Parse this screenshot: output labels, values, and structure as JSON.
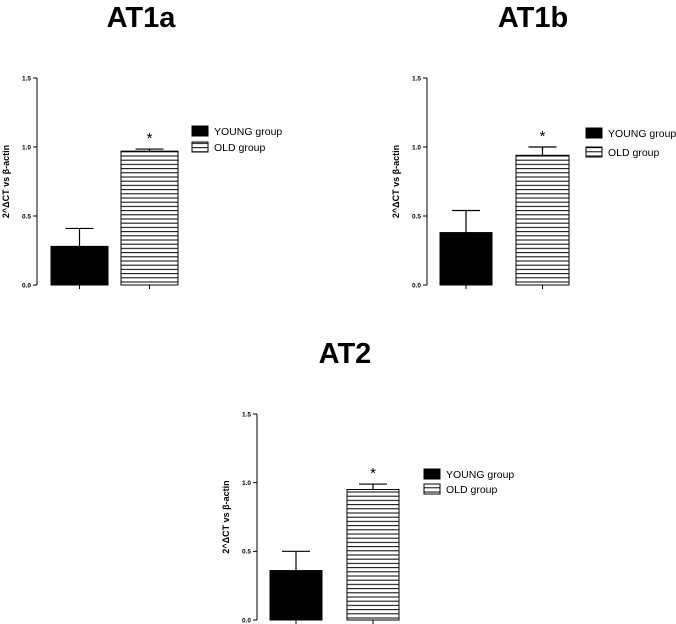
{
  "chart_data": [
    {
      "type": "bar",
      "title": "AT1a",
      "ylabel": "2^ΔCT vs β-actin",
      "xlabel": "",
      "ylim": [
        0,
        1.5
      ],
      "yticks": [
        "0.0",
        "0.5",
        "1.0",
        "1.5"
      ],
      "categories": [
        "YOUNG group",
        "OLD group"
      ],
      "values": [
        0.28,
        0.97
      ],
      "errors": [
        0.13,
        0.015
      ],
      "annotations": [
        "",
        "*"
      ],
      "series": [
        {
          "name": "YOUNG group",
          "value": 0.28,
          "error": 0.13,
          "fill": "solid",
          "color": "#000000"
        },
        {
          "name": "OLD group",
          "value": 0.97,
          "error": 0.015,
          "fill": "horizontal-stripes",
          "color": "#000000"
        }
      ],
      "legend": "right",
      "grid": false
    },
    {
      "type": "bar",
      "title": "AT1b",
      "ylabel": "2^ΔCT vs β-actin",
      "xlabel": "",
      "ylim": [
        0,
        1.5
      ],
      "yticks": [
        "0.0",
        "0.5",
        "1.0",
        "1.5"
      ],
      "categories": [
        "YOUNG group",
        "OLD group"
      ],
      "values": [
        0.38,
        0.94
      ],
      "errors": [
        0.16,
        0.06
      ],
      "annotations": [
        "",
        "*"
      ],
      "series": [
        {
          "name": "YOUNG group",
          "value": 0.38,
          "error": 0.16,
          "fill": "solid",
          "color": "#000000"
        },
        {
          "name": "OLD group",
          "value": 0.94,
          "error": 0.06,
          "fill": "horizontal-stripes",
          "color": "#000000"
        }
      ],
      "legend": "right",
      "grid": false
    },
    {
      "type": "bar",
      "title": "AT2",
      "ylabel": "2^ΔCT vs β-actin",
      "xlabel": "",
      "ylim": [
        0,
        1.5
      ],
      "yticks": [
        "0.0",
        "0.5",
        "1.0",
        "1.5"
      ],
      "categories": [
        "YOUNG group",
        "OLD group"
      ],
      "values": [
        0.36,
        0.95
      ],
      "errors": [
        0.14,
        0.04
      ],
      "annotations": [
        "",
        "*"
      ],
      "series": [
        {
          "name": "YOUNG group",
          "value": 0.36,
          "error": 0.14,
          "fill": "solid",
          "color": "#000000"
        },
        {
          "name": "OLD group",
          "value": 0.95,
          "error": 0.04,
          "fill": "horizontal-stripes",
          "color": "#000000"
        }
      ],
      "legend": "right",
      "grid": false
    }
  ]
}
